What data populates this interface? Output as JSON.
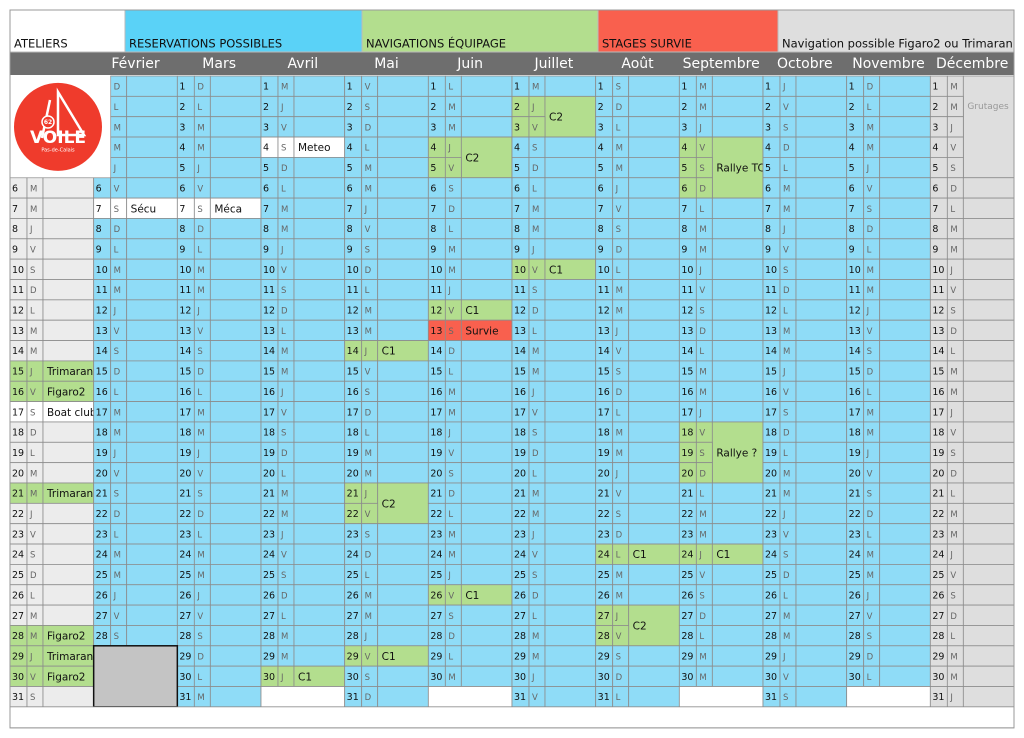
{
  "legend": [
    {
      "label": "ATELIERS",
      "color": "#ffffff"
    },
    {
      "label": "RESERVATIONS POSSIBLES",
      "color": "#5ad2f7"
    },
    {
      "label": "NAVIGATIONS ÉQUIPAGE",
      "color": "#b3de8e"
    },
    {
      "label": "STAGES SURVIE",
      "color": "#f9604e"
    },
    {
      "label": "Navigation possible Figaro2 ou Trimaran",
      "color": "#dedede"
    }
  ],
  "logo": {
    "badge": "62",
    "text": "VOILE",
    "sub": "Pas-de-Calais"
  },
  "day_numbers": [
    1,
    2,
    3,
    4,
    5,
    6,
    7,
    8,
    9,
    10,
    11,
    12,
    13,
    14,
    15,
    16,
    17,
    18,
    19,
    20,
    21,
    22,
    23,
    24,
    25,
    26,
    27,
    28,
    29,
    30,
    31
  ],
  "months": [
    {
      "name": null,
      "color": "#ececec",
      "weekdays": [
        null,
        null,
        null,
        null,
        null,
        "M",
        "M",
        "J",
        "V",
        "S",
        "D",
        "L",
        "M",
        "M",
        "J",
        "V",
        "S",
        "D",
        "L",
        "M",
        "M",
        "J",
        "V",
        "S",
        "D",
        "L",
        "M",
        "M",
        "J",
        "V",
        "S"
      ],
      "events": [
        {
          "from": 15,
          "to": 15,
          "text": "Trimaran",
          "color": "#b3de8e"
        },
        {
          "from": 16,
          "to": 16,
          "text": "Figaro2",
          "color": "#b3de8e"
        },
        {
          "from": 17,
          "to": 17,
          "text": "Boat club",
          "color": "#ffffff"
        },
        {
          "from": 21,
          "to": 21,
          "text": "Trimaran",
          "color": "#b3de8e"
        },
        {
          "from": 28,
          "to": 28,
          "text": "Figaro2",
          "color": "#b3de8e"
        },
        {
          "from": 29,
          "to": 29,
          "text": "Trimaran",
          "color": "#b3de8e"
        },
        {
          "from": 30,
          "to": 30,
          "text": "Figaro2",
          "color": "#b3de8e"
        }
      ]
    },
    {
      "name": "Février",
      "color": "#8fdcf7",
      "weekdays": [
        "D",
        "L",
        "M",
        "M",
        "J",
        "V",
        "S",
        "D",
        "L",
        "M",
        "M",
        "J",
        "V",
        "S",
        "D",
        "L",
        "M",
        "M",
        "J",
        "V",
        "S",
        "D",
        "L",
        "M",
        "M",
        "J",
        "V",
        "S"
      ],
      "events": [
        {
          "from": 7,
          "to": 7,
          "text": "Sécu",
          "color": "#ffffff"
        }
      ]
    },
    {
      "name": "Mars",
      "color": "#8fdcf7",
      "weekdays": [
        "D",
        "L",
        "M",
        "M",
        "J",
        "V",
        "S",
        "D",
        "L",
        "M",
        "M",
        "J",
        "V",
        "S",
        "D",
        "L",
        "M",
        "M",
        "J",
        "V",
        "S",
        "D",
        "L",
        "M",
        "M",
        "J",
        "V",
        "S",
        "D",
        "L",
        "M"
      ],
      "events": [
        {
          "from": 7,
          "to": 7,
          "text": "Méca",
          "color": "#ffffff"
        }
      ]
    },
    {
      "name": "Avril",
      "color": "#8fdcf7",
      "weekdays": [
        "M",
        "J",
        "V",
        "S",
        "D",
        "L",
        "M",
        "M",
        "J",
        "V",
        "S",
        "D",
        "L",
        "M",
        "M",
        "J",
        "V",
        "S",
        "D",
        "L",
        "M",
        "M",
        "J",
        "V",
        "S",
        "D",
        "L",
        "M",
        "M",
        "J"
      ],
      "events": [
        {
          "from": 4,
          "to": 4,
          "text": "Meteo",
          "color": "#ffffff"
        },
        {
          "from": 30,
          "to": 30,
          "text": "C1",
          "color": "#b3de8e"
        }
      ]
    },
    {
      "name": "Mai",
      "color": "#8fdcf7",
      "weekdays": [
        "V",
        "S",
        "D",
        "L",
        "M",
        "M",
        "J",
        "V",
        "S",
        "D",
        "L",
        "M",
        "M",
        "J",
        "V",
        "S",
        "D",
        "L",
        "M",
        "M",
        "J",
        "V",
        "S",
        "D",
        "L",
        "M",
        "M",
        "J",
        "V",
        "S",
        "D"
      ],
      "events": [
        {
          "from": 14,
          "to": 14,
          "text": "C1",
          "color": "#b3de8e"
        },
        {
          "from": 21,
          "to": 22,
          "text": "C2",
          "color": "#b3de8e"
        },
        {
          "from": 29,
          "to": 29,
          "text": "C1",
          "color": "#b3de8e"
        }
      ]
    },
    {
      "name": "Juin",
      "color": "#8fdcf7",
      "weekdays": [
        "L",
        "M",
        "M",
        "J",
        "V",
        "S",
        "D",
        "L",
        "M",
        "M",
        "J",
        "V",
        "S",
        "D",
        "L",
        "M",
        "M",
        "J",
        "V",
        "S",
        "D",
        "L",
        "M",
        "M",
        "J",
        "V",
        "S",
        "D",
        "L",
        "M"
      ],
      "events": [
        {
          "from": 4,
          "to": 5,
          "text": "C2",
          "color": "#b3de8e"
        },
        {
          "from": 12,
          "to": 12,
          "text": "C1",
          "color": "#b3de8e"
        },
        {
          "from": 13,
          "to": 13,
          "text": "Survie",
          "color": "#f9604e"
        },
        {
          "from": 26,
          "to": 26,
          "text": "C1",
          "color": "#b3de8e"
        }
      ]
    },
    {
      "name": "Juillet",
      "color": "#8fdcf7",
      "weekdays": [
        "M",
        "J",
        "V",
        "S",
        "D",
        "L",
        "M",
        "M",
        "J",
        "V",
        "S",
        "D",
        "L",
        "M",
        "M",
        "J",
        "V",
        "S",
        "D",
        "L",
        "M",
        "M",
        "J",
        "V",
        "S",
        "D",
        "L",
        "M",
        "M",
        "J",
        "V"
      ],
      "events": [
        {
          "from": 2,
          "to": 3,
          "text": "C2",
          "color": "#b3de8e"
        },
        {
          "from": 10,
          "to": 10,
          "text": "C1",
          "color": "#b3de8e"
        }
      ]
    },
    {
      "name": "Août",
      "color": "#8fdcf7",
      "weekdays": [
        "S",
        "D",
        "L",
        "M",
        "M",
        "J",
        "V",
        "S",
        "D",
        "L",
        "M",
        "M",
        "J",
        "V",
        "S",
        "D",
        "L",
        "M",
        "M",
        "J",
        "V",
        "S",
        "D",
        "L",
        "M",
        "M",
        "J",
        "V",
        "S",
        "D",
        "L"
      ],
      "events": [
        {
          "from": 24,
          "to": 24,
          "text": "C1",
          "color": "#b3de8e"
        },
        {
          "from": 27,
          "to": 28,
          "text": "C2",
          "color": "#b3de8e"
        }
      ]
    },
    {
      "name": "Septembre",
      "color": "#8fdcf7",
      "weekdays": [
        "M",
        "M",
        "J",
        "V",
        "S",
        "D",
        "L",
        "M",
        "M",
        "J",
        "V",
        "S",
        "D",
        "L",
        "M",
        "M",
        "J",
        "V",
        "S",
        "D",
        "L",
        "M",
        "M",
        "J",
        "V",
        "S",
        "D",
        "L",
        "M",
        "M"
      ],
      "events": [
        {
          "from": 4,
          "to": 6,
          "text": "Rallye TC",
          "color": "#b3de8e"
        },
        {
          "from": 18,
          "to": 20,
          "text": "Rallye ?",
          "color": "#b3de8e"
        },
        {
          "from": 24,
          "to": 24,
          "text": "C1",
          "color": "#b3de8e"
        }
      ]
    },
    {
      "name": "Octobre",
      "color": "#8fdcf7",
      "weekdays": [
        "J",
        "V",
        "S",
        "D",
        "L",
        "M",
        "M",
        "J",
        "V",
        "S",
        "D",
        "L",
        "M",
        "M",
        "J",
        "V",
        "S",
        "D",
        "L",
        "M",
        "M",
        "J",
        "V",
        "S",
        "D",
        "L",
        "M",
        "M",
        "J",
        "V",
        "S"
      ],
      "events": []
    },
    {
      "name": "Novembre",
      "color": "#8fdcf7",
      "weekdays": [
        "D",
        "L",
        "M",
        "M",
        "J",
        "V",
        "S",
        "D",
        "L",
        "M",
        "M",
        "J",
        "V",
        "S",
        "D",
        "L",
        "M",
        "M",
        "J",
        "V",
        "S",
        "D",
        "L",
        "M",
        "M",
        "J",
        "V",
        "S",
        "D",
        "L"
      ],
      "events": []
    },
    {
      "name": "Décembre",
      "color": "#dedede",
      "weekdays": [
        "M",
        "M",
        "J",
        "V",
        "S",
        "D",
        "L",
        "M",
        "M",
        "J",
        "V",
        "S",
        "D",
        "L",
        "M",
        "M",
        "J",
        "V",
        "S",
        "D",
        "L",
        "M",
        "M",
        "J",
        "V",
        "S",
        "D",
        "L",
        "M",
        "M",
        "J"
      ],
      "events": [
        {
          "from": 1,
          "to": 5,
          "text": "Grutages",
          "color": "#dedede"
        }
      ]
    }
  ]
}
